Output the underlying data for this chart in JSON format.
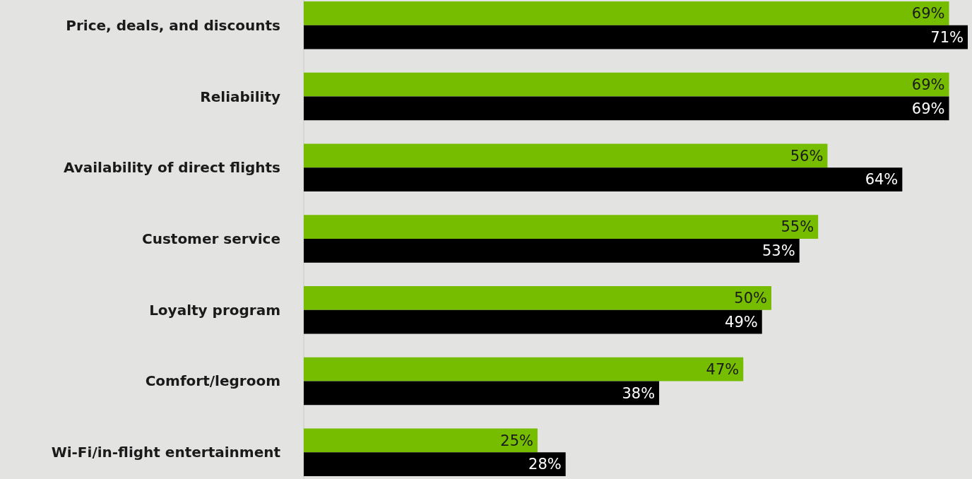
{
  "chart_data": {
    "type": "bar",
    "orientation": "horizontal",
    "categories": [
      "Price, deals, and discounts",
      "Reliability",
      "Availability of direct flights",
      "Customer service",
      "Loyalty program",
      "Comfort/legroom",
      "Wi-Fi/in-flight entertainment"
    ],
    "series": [
      {
        "color": "#76bd00",
        "values": [
          69,
          69,
          56,
          55,
          50,
          47,
          25
        ],
        "value_labels": [
          "69%",
          "69%",
          "56%",
          "55%",
          "50%",
          "47%",
          "25%"
        ]
      },
      {
        "color": "#000000",
        "values": [
          71,
          69,
          64,
          53,
          49,
          38,
          28
        ],
        "value_labels": [
          "71%",
          "69%",
          "64%",
          "53%",
          "49%",
          "38%",
          "28%"
        ]
      }
    ]
  }
}
